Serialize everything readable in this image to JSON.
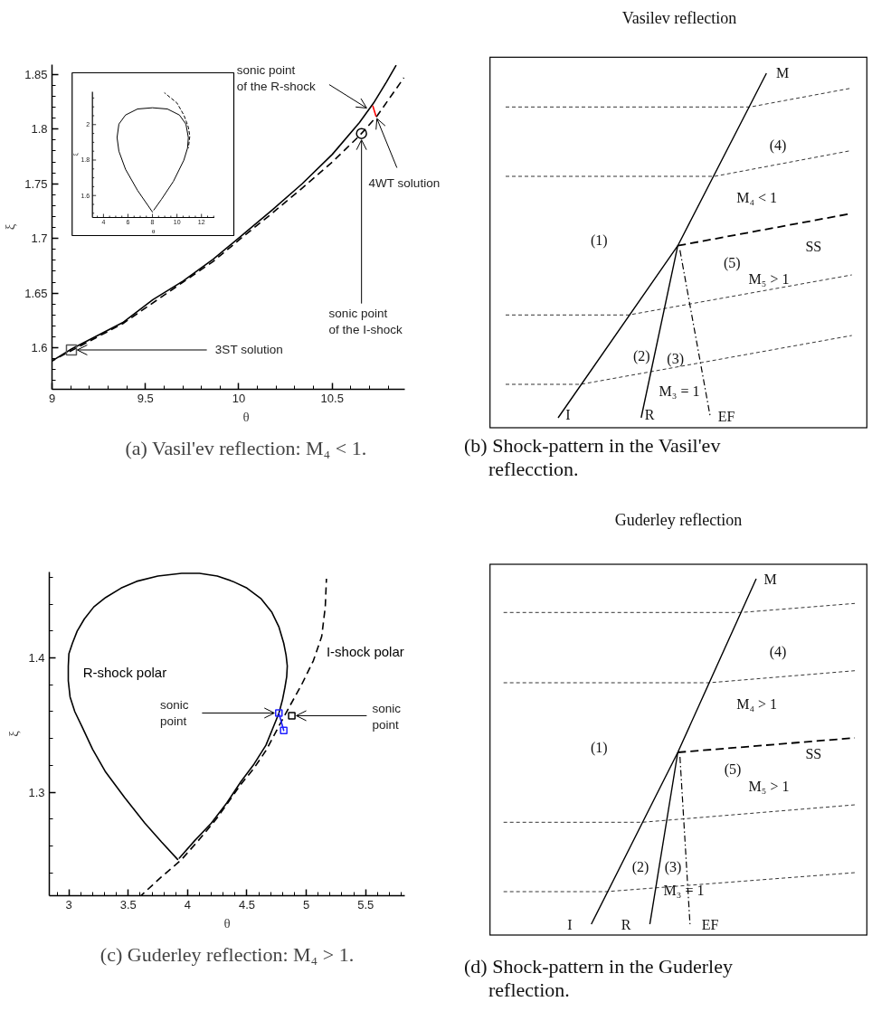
{
  "chart_data": [
    {
      "type": "line",
      "xlabel": "θ",
      "ylabel": "ξ",
      "xlim": [
        9,
        10.89
      ],
      "ylim": [
        1.562,
        1.859
      ],
      "xticks": [
        9,
        {
          "value": 9.1,
          "label": null
        },
        {
          "value": 9.2,
          "label": null
        },
        {
          "value": 9.3,
          "label": null
        },
        {
          "value": 9.4,
          "label": null
        },
        9.5,
        {
          "value": 9.6,
          "label": null
        },
        {
          "value": 9.7,
          "label": null
        },
        {
          "value": 9.8,
          "label": null
        },
        {
          "value": 9.9,
          "label": null
        },
        10,
        {
          "value": 10.1,
          "label": null
        },
        {
          "value": 10.2,
          "label": null
        },
        {
          "value": 10.3,
          "label": null
        },
        {
          "value": 10.4,
          "label": null
        },
        10.5,
        {
          "value": 10.6,
          "label": null
        },
        {
          "value": 10.7,
          "label": null
        },
        {
          "value": 10.8,
          "label": null
        }
      ],
      "yticks": [
        {
          "value": 1.57,
          "label": null
        },
        {
          "value": 1.58,
          "label": null
        },
        {
          "value": 1.59,
          "label": null
        },
        1.6,
        {
          "value": 1.61,
          "label": null
        },
        {
          "value": 1.62,
          "label": null
        },
        {
          "value": 1.63,
          "label": null
        },
        {
          "value": 1.64,
          "label": null
        },
        1.65,
        {
          "value": 1.66,
          "label": null
        },
        {
          "value": 1.67,
          "label": null
        },
        {
          "value": 1.68,
          "label": null
        },
        {
          "value": 1.69,
          "label": null
        },
        1.7,
        {
          "value": 1.71,
          "label": null
        },
        {
          "value": 1.72,
          "label": null
        },
        {
          "value": 1.73,
          "label": null
        },
        {
          "value": 1.74,
          "label": null
        },
        1.75,
        {
          "value": 1.76,
          "label": null
        },
        {
          "value": 1.77,
          "label": null
        },
        {
          "value": 1.78,
          "label": null
        },
        {
          "value": 1.79,
          "label": null
        },
        1.8,
        {
          "value": 1.81,
          "label": null
        },
        {
          "value": 1.82,
          "label": null
        },
        {
          "value": 1.83,
          "label": null
        },
        {
          "value": 1.84,
          "label": null
        },
        1.85
      ],
      "series": [
        {
          "type": "line",
          "color": "#000000",
          "line_style": "solid",
          "x": [
            9.0,
            9.106,
            9.378,
            9.54,
            9.701,
            9.863,
            10.025,
            10.178,
            10.339,
            10.501,
            10.646,
            10.722,
            10.79,
            10.841
          ],
          "values": [
            1.588,
            1.599,
            1.623,
            1.644,
            1.661,
            1.681,
            1.704,
            1.726,
            1.75,
            1.777,
            1.806,
            1.824,
            1.843,
            1.858
          ]
        },
        {
          "type": "line",
          "color": "#000000",
          "line_style": "dashed",
          "x": [
            9.0,
            9.378,
            9.701,
            9.863,
            10.025,
            10.178,
            10.339,
            10.501,
            10.646,
            10.74,
            10.884
          ],
          "values": [
            1.588,
            1.622,
            1.66,
            1.679,
            1.702,
            1.723,
            1.746,
            1.77,
            1.794,
            1.812,
            1.847
          ]
        },
        {
          "type": "line",
          "color": "#ff0000",
          "line_style": "solid",
          "x": [
            10.718,
            10.734
          ],
          "values": [
            1.821,
            1.812
          ]
        },
        {
          "type": "scatter",
          "color": "#555555",
          "marker": "square",
          "x": [
            9.104
          ],
          "values": [
            1.598
          ]
        },
        {
          "type": "scatter",
          "color": "#000000",
          "marker": "circle",
          "x": [
            10.657
          ],
          "values": [
            1.796
          ]
        }
      ],
      "annotations": [
        {
          "text": "sonic point\nof the R-shock",
          "x": 10.697,
          "y": 1.818
        },
        {
          "text": "4WT solution",
          "x": 10.734,
          "y": 1.812
        },
        {
          "text": "sonic point\nof the I-shock",
          "x": 10.657,
          "y": 1.796
        },
        {
          "text": "3ST solution",
          "x": 9.104,
          "y": 1.598
        },
        "(a) Vasil'ev reflection: M₄ < 1."
      ]
    },
    {
      "type": "line",
      "xlabel": "θ",
      "ylabel": "ξ",
      "xlim": [
        3.1,
        13.05
      ],
      "ylim": [
        1.476,
        2.185
      ],
      "xticks": [
        {
          "value": 3.5,
          "label": null
        },
        4,
        {
          "value": 4.5,
          "label": null
        },
        {
          "value": 5,
          "label": null
        },
        {
          "value": 5.5,
          "label": null
        },
        6,
        {
          "value": 6.5,
          "label": null
        },
        {
          "value": 7,
          "label": null
        },
        {
          "value": 7.5,
          "label": null
        },
        8,
        {
          "value": 8.5,
          "label": null
        },
        {
          "value": 9,
          "label": null
        },
        {
          "value": 9.5,
          "label": null
        },
        10,
        {
          "value": 10.5,
          "label": null
        },
        {
          "value": 11,
          "label": null
        },
        {
          "value": 11.5,
          "label": null
        },
        12,
        {
          "value": 12.5,
          "label": null
        },
        {
          "value": 13,
          "label": null
        }
      ],
      "yticks": [
        {
          "value": 1.5,
          "label": null
        },
        {
          "value": 1.55,
          "label": null
        },
        1.6,
        {
          "value": 1.65,
          "label": null
        },
        {
          "value": 1.7,
          "label": null
        },
        {
          "value": 1.75,
          "label": null
        },
        1.8,
        {
          "value": 1.85,
          "label": null
        },
        {
          "value": 1.9,
          "label": null
        },
        {
          "value": 1.95,
          "label": null
        },
        2,
        {
          "value": 2.05,
          "label": null
        },
        {
          "value": 2.1,
          "label": null
        },
        {
          "value": 2.15,
          "label": null
        }
      ],
      "series": [
        {
          "type": "line",
          "color": "#000000",
          "line_style": "solid",
          "x": [
            8.0,
            6.78,
            5.8,
            5.26,
            5.11,
            5.26,
            5.8,
            6.78,
            8.0,
            9.22,
            10.2,
            10.73,
            10.93,
            10.86,
            10.56,
            9.71,
            8.73,
            8.11
          ],
          "values": [
            1.507,
            1.629,
            1.748,
            1.85,
            1.927,
            2.003,
            2.054,
            2.088,
            2.095,
            2.088,
            2.054,
            2.003,
            1.927,
            1.867,
            1.799,
            1.68,
            1.578,
            1.518
          ]
        },
        {
          "type": "line",
          "color": "#000000",
          "line_style": "dashed",
          "x": [
            8.97,
            10.0,
            10.56,
            10.93,
            11.05,
            10.93
          ],
          "values": [
            2.18,
            2.122,
            2.054,
            1.986,
            1.935,
            1.867
          ]
        }
      ]
    },
    {
      "type": "other",
      "title": "Vasilev reflection",
      "annotations": [
        "M",
        "(4)",
        "M₄ < 1",
        "(1)",
        "SS",
        "(5)",
        "M₅ > 1",
        "(2)",
        "(3)",
        "M₃ = 1",
        "I",
        "R",
        "EF",
        "(b) Shock-pattern in the Vasil'ev reflecction."
      ]
    },
    {
      "type": "line",
      "xlim": [
        2.835,
        5.83
      ],
      "ylim": [
        1.223,
        1.464
      ],
      "xlabel": "θ",
      "ylabel": "ξ",
      "xticks": [
        {
          "value": 2.9,
          "label": null
        },
        3,
        {
          "value": 3.1,
          "label": null
        },
        {
          "value": 3.2,
          "label": null
        },
        {
          "value": 3.3,
          "label": null
        },
        {
          "value": 3.4,
          "label": null
        },
        3.5,
        {
          "value": 3.6,
          "label": null
        },
        {
          "value": 3.7,
          "label": null
        },
        {
          "value": 3.8,
          "label": null
        },
        {
          "value": 3.9,
          "label": null
        },
        4,
        {
          "value": 4.1,
          "label": null
        },
        {
          "value": 4.2,
          "label": null
        },
        {
          "value": 4.3,
          "label": null
        },
        {
          "value": 4.4,
          "label": null
        },
        4.5,
        {
          "value": 4.6,
          "label": null
        },
        {
          "value": 4.7,
          "label": null
        },
        {
          "value": 4.8,
          "label": null
        },
        {
          "value": 4.9,
          "label": null
        },
        5,
        {
          "value": 5.1,
          "label": null
        },
        {
          "value": 5.2,
          "label": null
        },
        {
          "value": 5.3,
          "label": null
        },
        {
          "value": 5.4,
          "label": null
        },
        5.5,
        {
          "value": 5.6,
          "label": null
        },
        {
          "value": 5.7,
          "label": null
        },
        {
          "value": 5.8,
          "label": null
        }
      ],
      "yticks": [
        {
          "value": 1.24,
          "label": null
        },
        {
          "value": 1.26,
          "label": null
        },
        {
          "value": 1.28,
          "label": null
        },
        1.3,
        {
          "value": 1.32,
          "label": null
        },
        {
          "value": 1.34,
          "label": null
        },
        {
          "value": 1.36,
          "label": null
        },
        {
          "value": 1.38,
          "label": null
        },
        1.4,
        {
          "value": 1.42,
          "label": null
        },
        {
          "value": 1.44,
          "label": null
        },
        {
          "value": 1.46,
          "label": null
        }
      ],
      "series": [
        {
          "type": "line",
          "name": "R-shock polar",
          "color": "#000000",
          "line_style": "solid",
          "x": [
            3.916,
            3.78,
            3.64,
            3.47,
            3.31,
            3.2,
            3.11,
            3.05,
            3.01,
            2.995,
            2.995,
            3.0,
            3.03,
            3.07,
            3.13,
            3.21,
            3.31,
            3.44,
            3.57,
            3.75,
            3.95,
            4.1,
            4.25,
            4.38,
            4.5,
            4.62,
            4.71,
            4.77,
            4.81,
            4.83,
            4.84,
            4.835,
            4.82,
            4.8,
            4.77,
            4.72,
            4.66,
            4.56,
            4.45,
            4.33,
            4.2,
            4.06,
            3.93
          ],
          "values": [
            1.25,
            1.263,
            1.277,
            1.296,
            1.315,
            1.332,
            1.349,
            1.36,
            1.371,
            1.383,
            1.394,
            1.403,
            1.411,
            1.42,
            1.429,
            1.438,
            1.445,
            1.452,
            1.457,
            1.461,
            1.463,
            1.463,
            1.461,
            1.457,
            1.452,
            1.444,
            1.434,
            1.423,
            1.411,
            1.402,
            1.394,
            1.386,
            1.378,
            1.369,
            1.359,
            1.348,
            1.335,
            1.321,
            1.308,
            1.292,
            1.277,
            1.264,
            1.251
          ]
        },
        {
          "type": "line",
          "name": "I-shock polar",
          "color": "#000000",
          "line_style": "dashed",
          "x": [
            3.607,
            3.78,
            3.95,
            4.1,
            4.25,
            4.45,
            4.56,
            4.66,
            4.78,
            4.86,
            4.96,
            5.06,
            5.13,
            5.16,
            5.17
          ],
          "values": [
            1.223,
            1.237,
            1.25,
            1.265,
            1.281,
            1.306,
            1.318,
            1.331,
            1.351,
            1.364,
            1.38,
            1.398,
            1.416,
            1.438,
            1.459
          ]
        },
        {
          "type": "line",
          "color": "#2020ff",
          "line_style": "solid",
          "marker": "square",
          "x": [
            4.769,
            4.81
          ],
          "values": [
            1.359,
            1.346
          ]
        },
        {
          "type": "scatter",
          "color": "#000000",
          "marker": "square",
          "x": [
            4.878
          ],
          "values": [
            1.357
          ]
        }
      ],
      "annotations": [
        {
          "text": "sonic\npoint",
          "x": 4.769,
          "y": 1.359
        },
        {
          "text": "sonic\npoint",
          "x": 4.878,
          "y": 1.357
        },
        "(c) Guderley reflection: M₄ > 1."
      ]
    },
    {
      "type": "other",
      "title": "Guderley reflection",
      "annotations": [
        "M",
        "(4)",
        "M₄ > 1",
        "(1)",
        "SS",
        "(5)",
        "M₅ > 1",
        "(2)",
        "(3)",
        "M₃ = 1",
        "I",
        "R",
        "EF",
        "(d) Shock-pattern in the Guderley reflection."
      ]
    }
  ]
}
